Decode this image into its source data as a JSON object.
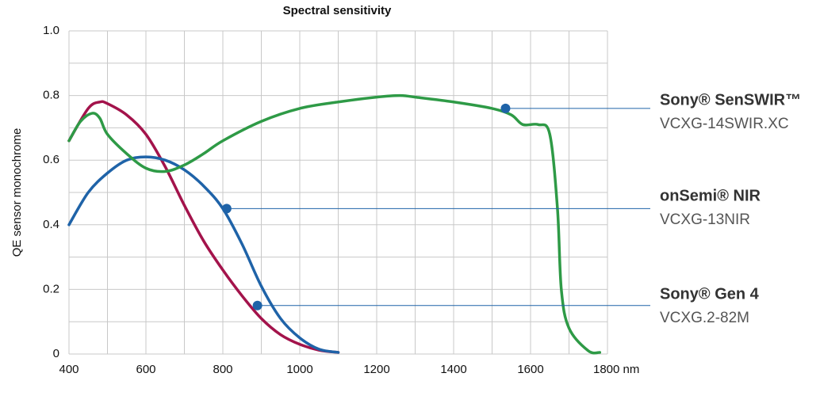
{
  "chart_data": {
    "type": "line",
    "title": "Spectral sensitivity",
    "y_label": "QE sensor monochrome",
    "xlim": [
      400,
      1800
    ],
    "ylim": [
      0,
      1
    ],
    "xticks": [
      400,
      600,
      800,
      1000,
      1200,
      1400,
      1600,
      {
        "value": 1800,
        "label": "1800 nm"
      }
    ],
    "yticks": [
      0,
      0.2,
      0.4,
      0.6,
      0.8,
      {
        "value": 1,
        "label": "1.0"
      }
    ],
    "xminorticks": [
      500,
      700,
      900,
      1100,
      1300,
      1500,
      1700
    ],
    "yminorticks": [
      0.1,
      0.3,
      0.5,
      0.7,
      0.9
    ],
    "grid": true,
    "marker_color": "#1f63a8",
    "series": [
      {
        "name": "Sony® Gen 4",
        "model": "VCXG.2-82M",
        "color": "#a3134b",
        "x": [
          400,
          450,
          480,
          500,
          550,
          600,
          650,
          700,
          750,
          800,
          850,
          900,
          950,
          1000,
          1050,
          1100
        ],
        "values": [
          0.66,
          0.76,
          0.78,
          0.775,
          0.74,
          0.68,
          0.58,
          0.46,
          0.35,
          0.26,
          0.18,
          0.11,
          0.06,
          0.03,
          0.012,
          0.005
        ],
        "label_point": {
          "x": 890,
          "y": 0.15
        }
      },
      {
        "name": "onSemi® NIR",
        "model": "VCXG-13NIR",
        "color": "#1f63a8",
        "x": [
          400,
          450,
          500,
          550,
          600,
          650,
          700,
          750,
          800,
          850,
          900,
          950,
          1000,
          1050,
          1100
        ],
        "values": [
          0.4,
          0.5,
          0.56,
          0.6,
          0.61,
          0.6,
          0.57,
          0.52,
          0.45,
          0.34,
          0.21,
          0.11,
          0.05,
          0.015,
          0.005
        ],
        "label_point": {
          "x": 810,
          "y": 0.45
        }
      },
      {
        "name": "Sony® SenSWIR™",
        "model": "VCXG-14SWIR.XC",
        "color": "#2e9a46",
        "x": [
          400,
          430,
          460,
          480,
          500,
          550,
          600,
          650,
          700,
          750,
          800,
          900,
          1000,
          1100,
          1200,
          1260,
          1300,
          1400,
          1500,
          1550,
          1580,
          1620,
          1650,
          1670,
          1680,
          1700,
          1750,
          1780
        ],
        "values": [
          0.66,
          0.72,
          0.745,
          0.73,
          0.68,
          0.62,
          0.575,
          0.565,
          0.585,
          0.62,
          0.66,
          0.72,
          0.76,
          0.78,
          0.795,
          0.8,
          0.795,
          0.78,
          0.76,
          0.74,
          0.71,
          0.71,
          0.68,
          0.45,
          0.2,
          0.08,
          0.01,
          0.005
        ],
        "label_point": {
          "x": 1535,
          "y": 0.76
        }
      }
    ]
  }
}
